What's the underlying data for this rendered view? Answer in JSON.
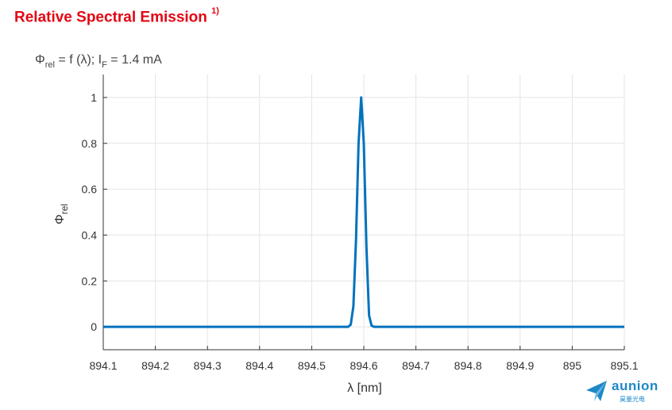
{
  "heading": {
    "text": "Relative Spectral Emission",
    "footnote": "1)"
  },
  "chart_data": {
    "type": "line",
    "title": "Φrel = f (λ); IF = 1.4 mA",
    "title_parts": {
      "phi": "Φ",
      "rel": "rel",
      "mid": " = f (λ); I",
      "f": "F",
      "end": " = 1.4 mA"
    },
    "xlabel": "λ [nm]",
    "ylabel": {
      "symbol": "Φ",
      "sub": "rel"
    },
    "xlim": [
      894.1,
      895.1
    ],
    "ylim": [
      -0.1,
      1.1
    ],
    "xticks": [
      894.1,
      894.2,
      894.3,
      894.4,
      894.5,
      894.6,
      894.7,
      894.8,
      894.9,
      895.0,
      895.1
    ],
    "xtick_labels": [
      "894.1",
      "894.2",
      "894.3",
      "894.4",
      "894.5",
      "894.6",
      "894.7",
      "894.8",
      "894.9",
      "895",
      "895.1"
    ],
    "yticks": [
      0,
      0.2,
      0.4,
      0.6,
      0.8,
      1.0
    ],
    "ytick_labels": [
      "0",
      "0.2",
      "0.4",
      "0.6",
      "0.8",
      "1"
    ],
    "grid": true,
    "series": [
      {
        "color": "#0072bd",
        "x": [
          894.1,
          894.57,
          894.575,
          894.58,
          894.585,
          894.59,
          894.595,
          894.6,
          894.605,
          894.61,
          894.615,
          894.62,
          894.625,
          895.1
        ],
        "y": [
          0,
          0,
          0.01,
          0.09,
          0.38,
          0.8,
          1.0,
          0.8,
          0.35,
          0.05,
          0.005,
          0,
          0,
          0
        ]
      }
    ]
  },
  "logo": {
    "word": "aunion",
    "sub": "昊量光电"
  }
}
